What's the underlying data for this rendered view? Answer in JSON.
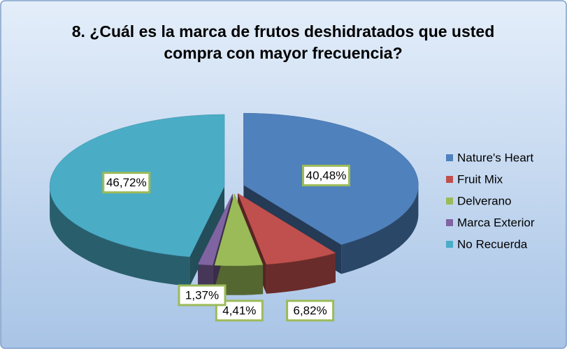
{
  "chart_data": {
    "type": "pie",
    "title": "8. ¿Cuál es la marca de frutos deshidratados que usted compra con mayor frecuencia?",
    "categories": [
      "Nature's Heart",
      "Fruit Mix",
      "Delverano",
      "Marca Exterior",
      "No Recuerda"
    ],
    "values": [
      40.48,
      6.82,
      4.41,
      1.37,
      46.72
    ],
    "value_labels": [
      "40,48%",
      "6,82%",
      "4,41%",
      "1,37%",
      "46,72%"
    ],
    "colors": [
      "#4f81bd",
      "#c0504d",
      "#9bbb59",
      "#8064a2",
      "#4bacc6"
    ],
    "legend": "right"
  }
}
